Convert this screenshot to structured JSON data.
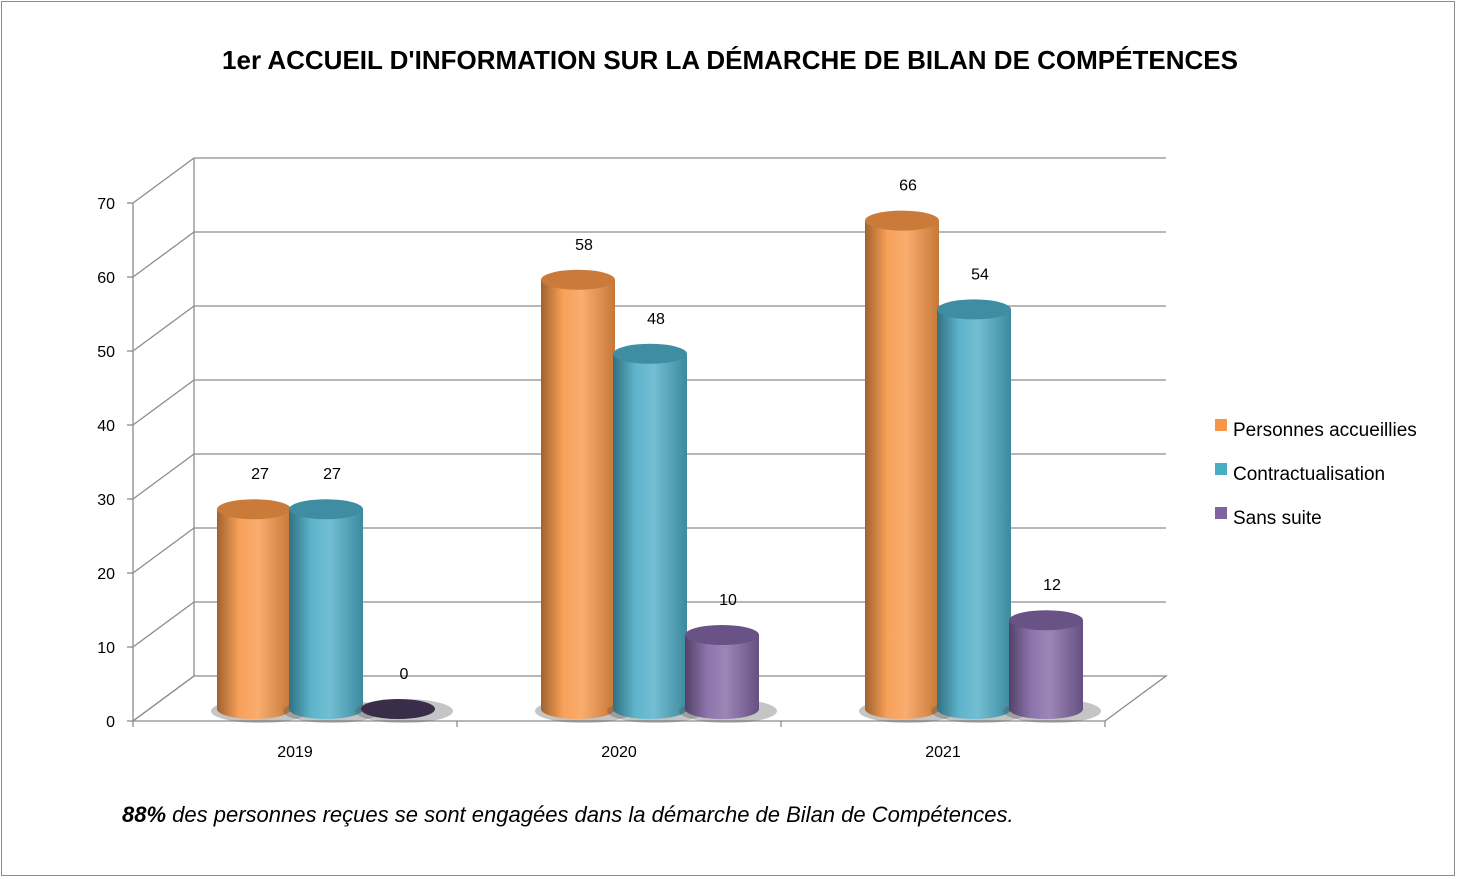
{
  "chart_data": {
    "type": "bar",
    "title": "1er ACCUEIL D'INFORMATION SUR LA DÉMARCHE DE BILAN DE COMPÉTENCES",
    "categories": [
      "2019",
      "2020",
      "2021"
    ],
    "series": [
      {
        "name": "Personnes accueillies",
        "values": [
          27,
          58,
          66
        ],
        "color": "#f79646"
      },
      {
        "name": "Contractualisation",
        "values": [
          27,
          48,
          54
        ],
        "color": "#4bacc6"
      },
      {
        "name": "Sans suite",
        "values": [
          0,
          10,
          12
        ],
        "color": "#8064a2"
      }
    ],
    "ylim": [
      0,
      70
    ],
    "yticks": [
      "0",
      "10",
      "20",
      "30",
      "40",
      "50",
      "60",
      "70"
    ],
    "grid": true,
    "style": "3d-cylinder",
    "legend_position": "right"
  },
  "footnote": {
    "emphasis": "88%",
    "text": " des personnes reçues se sont engagées dans la démarche de Bilan de Compétences."
  }
}
